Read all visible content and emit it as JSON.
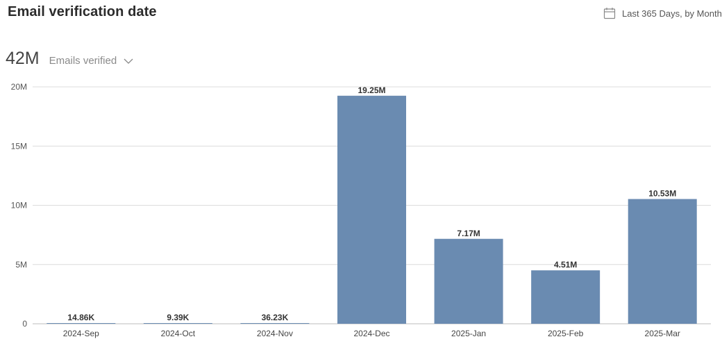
{
  "header": {
    "title": "Email verification date",
    "date_range": "Last 365 Days, by Month",
    "calendar_icon": "calendar-icon"
  },
  "metric": {
    "total": "42M",
    "selector_label": "Emails verified",
    "selector_icon": "chevron-down-icon"
  },
  "chart_data": {
    "type": "bar",
    "categories": [
      "2024-Sep",
      "2024-Oct",
      "2024-Nov",
      "2024-Dec",
      "2025-Jan",
      "2025-Feb",
      "2025-Mar"
    ],
    "values": [
      14860,
      9390,
      36230,
      19250000,
      7170000,
      4510000,
      10530000
    ],
    "data_labels": [
      "14.86K",
      "9.39K",
      "36.23K",
      "19.25M",
      "7.17M",
      "4.51M",
      "10.53M"
    ],
    "y_ticks": [
      0,
      5000000,
      10000000,
      15000000,
      20000000
    ],
    "y_tick_labels": [
      "0",
      "5M",
      "10M",
      "15M",
      "20M"
    ],
    "ylim": [
      0,
      20000000
    ],
    "grid": true,
    "bar_color": "#6a8bb1"
  }
}
